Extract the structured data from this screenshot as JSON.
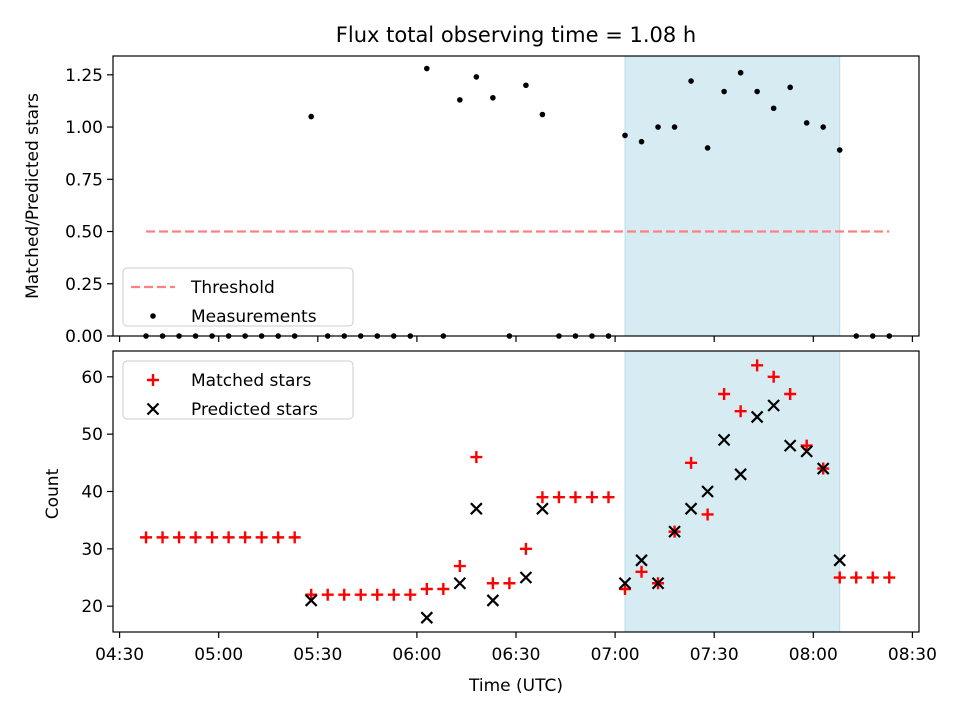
{
  "chart_data": [
    {
      "type": "scatter",
      "title": "Flux total observing time = 1.08 h",
      "xlabel": "",
      "ylabel": "Matched/Predicted stars",
      "ylim": [
        0,
        1.34
      ],
      "xlim": [
        "04:28",
        "08:32"
      ],
      "ytick_labels": [
        "0.00",
        "0.25",
        "0.50",
        "0.75",
        "1.00",
        "1.25"
      ],
      "yticks": [
        0,
        0.25,
        0.5,
        0.75,
        1.0,
        1.25
      ],
      "shaded_interval": [
        "07:03",
        "08:08"
      ],
      "legend_placement": "lower-left",
      "series": [
        {
          "name": "Threshold",
          "kind": "line",
          "style": "dashed",
          "color": "#ff8080",
          "x": [
            "04:38",
            "08:23"
          ],
          "y": [
            0.5,
            0.5
          ]
        },
        {
          "name": "Measurements",
          "kind": "scatter",
          "color": "#000000",
          "x": [
            "04:38",
            "04:43",
            "04:48",
            "04:53",
            "04:58",
            "05:03",
            "05:08",
            "05:13",
            "05:18",
            "05:23",
            "05:28",
            "05:33",
            "05:38",
            "05:43",
            "05:48",
            "05:53",
            "05:58",
            "06:03",
            "06:08",
            "06:13",
            "06:18",
            "06:23",
            "06:28",
            "06:33",
            "06:38",
            "06:43",
            "06:48",
            "06:53",
            "06:58",
            "07:03",
            "07:08",
            "07:13",
            "07:18",
            "07:23",
            "07:28",
            "07:33",
            "07:38",
            "07:43",
            "07:48",
            "07:53",
            "07:58",
            "08:03",
            "08:08",
            "08:13",
            "08:18",
            "08:23"
          ],
          "y": [
            0,
            0,
            0,
            0,
            0,
            0,
            0,
            0,
            0,
            0,
            1.05,
            0,
            0,
            0,
            0,
            0,
            0,
            1.28,
            0,
            1.13,
            1.24,
            1.14,
            0,
            1.2,
            1.06,
            0,
            0,
            0,
            0,
            0.96,
            0.93,
            1.0,
            1.0,
            1.22,
            0.9,
            1.17,
            1.26,
            1.17,
            1.09,
            1.19,
            1.02,
            1.0,
            0.89,
            0,
            0,
            0
          ]
        }
      ]
    },
    {
      "type": "scatter",
      "title": "",
      "xlabel": "Time (UTC)",
      "ylabel": "Count",
      "ylim": [
        15.5,
        64.5
      ],
      "xlim": [
        "04:28",
        "08:32"
      ],
      "ytick_labels": [
        "20",
        "30",
        "40",
        "50",
        "60"
      ],
      "yticks": [
        20,
        30,
        40,
        50,
        60
      ],
      "xtick_labels": [
        "04:30",
        "05:00",
        "05:30",
        "06:00",
        "06:30",
        "07:00",
        "07:30",
        "08:00",
        "08:30"
      ],
      "shaded_interval": [
        "07:03",
        "08:08"
      ],
      "legend_placement": "top-left",
      "series": [
        {
          "name": "Matched stars",
          "marker": "+",
          "color": "#ff0000",
          "x": [
            "04:38",
            "04:43",
            "04:48",
            "04:53",
            "04:58",
            "05:03",
            "05:08",
            "05:13",
            "05:18",
            "05:23",
            "05:28",
            "05:33",
            "05:38",
            "05:43",
            "05:48",
            "05:53",
            "05:58",
            "06:03",
            "06:08",
            "06:13",
            "06:18",
            "06:23",
            "06:28",
            "06:33",
            "06:38",
            "06:43",
            "06:48",
            "06:53",
            "06:58",
            "07:03",
            "07:08",
            "07:13",
            "07:18",
            "07:23",
            "07:28",
            "07:33",
            "07:38",
            "07:43",
            "07:48",
            "07:53",
            "07:58",
            "08:03",
            "08:08",
            "08:13",
            "08:18",
            "08:23"
          ],
          "y": [
            32,
            32,
            32,
            32,
            32,
            32,
            32,
            32,
            32,
            32,
            22,
            22,
            22,
            22,
            22,
            22,
            22,
            23,
            23,
            27,
            46,
            24,
            24,
            30,
            39,
            39,
            39,
            39,
            39,
            23,
            26,
            24,
            33,
            45,
            36,
            57,
            54,
            62,
            60,
            57,
            48,
            44,
            25,
            25,
            25,
            25
          ]
        },
        {
          "name": "Predicted stars",
          "marker": "x",
          "color": "#000000",
          "x": [
            "05:28",
            "06:03",
            "06:13",
            "06:18",
            "06:23",
            "06:33",
            "06:38",
            "07:03",
            "07:08",
            "07:13",
            "07:18",
            "07:23",
            "07:28",
            "07:33",
            "07:38",
            "07:43",
            "07:48",
            "07:53",
            "07:58",
            "08:03",
            "08:08"
          ],
          "y": [
            21,
            18,
            24,
            37,
            21,
            25,
            37,
            24,
            28,
            24,
            33,
            37,
            40,
            49,
            43,
            53,
            55,
            48,
            47,
            44,
            28
          ]
        }
      ]
    }
  ]
}
